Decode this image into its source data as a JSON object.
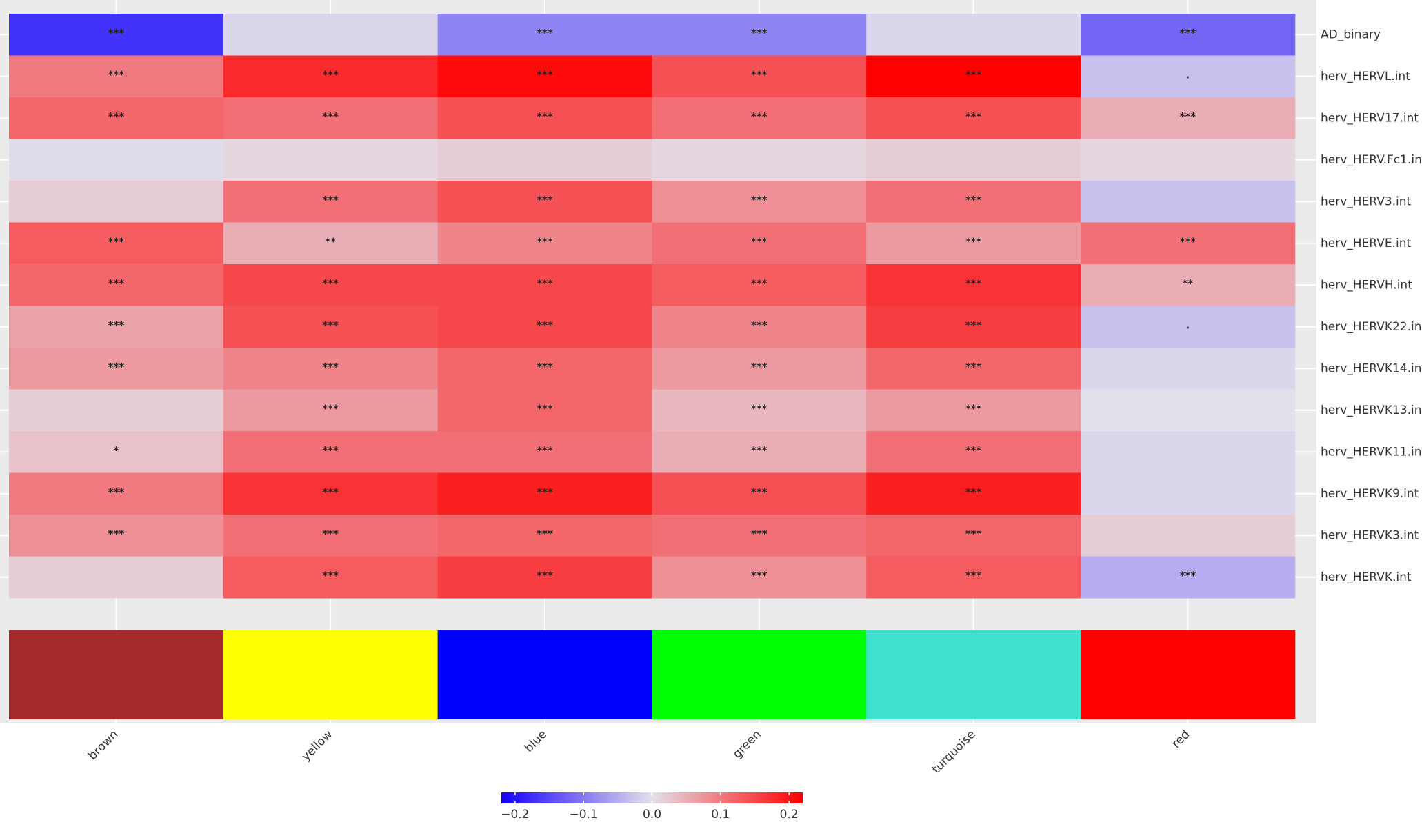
{
  "chart_data": {
    "type": "heatmap",
    "columns": [
      "brown",
      "yellow",
      "blue",
      "green",
      "turquoise",
      "red"
    ],
    "column_colors": [
      "#a52a2a",
      "#ffff00",
      "#0000ff",
      "#00ff00",
      "#40e0d0",
      "#ff0000"
    ],
    "rows": [
      "AD_binary",
      "herv_HERVL.int",
      "herv_HERV17.int",
      "herv_HERV.Fc1.int",
      "herv_HERV3.int",
      "herv_HERVE.int",
      "herv_HERVH.int",
      "herv_HERVK22.int",
      "herv_HERVK14.int",
      "herv_HERVK13.int",
      "herv_HERVK11.int",
      "herv_HERVK9.int",
      "herv_HERVK3.int",
      "herv_HERVK.int"
    ],
    "values": [
      [
        -0.17,
        -0.01,
        -0.09,
        -0.09,
        -0.01,
        -0.12
      ],
      [
        0.1,
        0.18,
        0.21,
        0.14,
        0.22,
        -0.03
      ],
      [
        0.12,
        0.11,
        0.14,
        0.11,
        0.14,
        0.05
      ],
      [
        -0.005,
        0.01,
        0.02,
        0.01,
        0.02,
        0.01
      ],
      [
        0.02,
        0.11,
        0.14,
        0.08,
        0.11,
        -0.03
      ],
      [
        0.13,
        0.05,
        0.09,
        0.11,
        0.07,
        0.11
      ],
      [
        0.12,
        0.15,
        0.15,
        0.13,
        0.17,
        0.05
      ],
      [
        0.06,
        0.14,
        0.15,
        0.09,
        0.16,
        -0.03
      ],
      [
        0.07,
        0.09,
        0.12,
        0.07,
        0.12,
        -0.01
      ],
      [
        0.02,
        0.07,
        0.12,
        0.04,
        0.07,
        0.0
      ],
      [
        0.03,
        0.11,
        0.11,
        0.05,
        0.11,
        -0.01
      ],
      [
        0.1,
        0.17,
        0.19,
        0.14,
        0.19,
        -0.01
      ],
      [
        0.08,
        0.11,
        0.12,
        0.11,
        0.12,
        0.02
      ],
      [
        0.02,
        0.13,
        0.16,
        0.08,
        0.13,
        -0.05
      ]
    ],
    "annotations": [
      [
        "***",
        null,
        "***",
        "***",
        null,
        "***"
      ],
      [
        "***",
        "***",
        "***",
        "***",
        "***",
        "."
      ],
      [
        "***",
        "***",
        "***",
        "***",
        "***",
        "***"
      ],
      [
        null,
        null,
        null,
        null,
        null,
        null
      ],
      [
        null,
        "***",
        "***",
        "***",
        "***",
        null
      ],
      [
        "***",
        "**",
        "***",
        "***",
        "***",
        "***"
      ],
      [
        "***",
        "***",
        "***",
        "***",
        "***",
        "**"
      ],
      [
        "***",
        "***",
        "***",
        "***",
        "***",
        "."
      ],
      [
        "***",
        "***",
        "***",
        "***",
        "***",
        null
      ],
      [
        null,
        "***",
        "***",
        "***",
        "***",
        null
      ],
      [
        "*",
        "***",
        "***",
        "***",
        "***",
        null
      ],
      [
        "***",
        "***",
        "***",
        "***",
        "***",
        null
      ],
      [
        "***",
        "***",
        "***",
        "***",
        "***",
        null
      ],
      [
        null,
        "***",
        "***",
        "***",
        "***",
        "***"
      ]
    ],
    "zlim": [
      -0.22,
      0.22
    ],
    "zticks": [
      {
        "value": -0.2,
        "label": "−0.2"
      },
      {
        "value": -0.1,
        "label": "−0.1"
      },
      {
        "value": 0,
        "label": "0.0"
      },
      0.1,
      0.2
    ],
    "colors": {
      "low": "#1400ff",
      "mid": "#e4e0ea",
      "high": "#ff0000"
    }
  }
}
